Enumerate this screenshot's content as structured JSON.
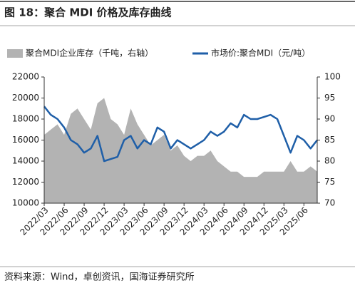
{
  "chart_data": {
    "type": "area-line",
    "title": "图 18：聚合 MDI 价格及库存曲线",
    "source": "资料来源：Wind，卓创资讯，国海证券研究所",
    "categories": [
      "2022/03",
      null,
      null,
      "2022/06",
      null,
      null,
      "2022/09",
      null,
      null,
      "2022/12",
      null,
      null,
      "2023/03",
      null,
      null,
      "2023/06",
      null,
      null,
      "2023/09",
      null,
      null,
      "2023/12",
      null,
      null,
      "2024/03",
      null,
      null,
      "2024/06",
      null,
      null,
      "2024/09",
      null,
      null,
      "2024/12",
      null,
      null,
      "2025/03",
      null,
      null,
      "2025/06",
      null,
      null
    ],
    "series": [
      {
        "name": "聚合MDI企业库存（千吨，右轴）",
        "kind": "area",
        "color": "#b3b3b3",
        "values": [
          16500,
          17000,
          17500,
          16500,
          18500,
          19000,
          18000,
          17000,
          19500,
          20000,
          18000,
          17500,
          16500,
          19000,
          17500,
          16500,
          15500,
          16000,
          16500,
          15000,
          15500,
          14500,
          14000,
          14500,
          14500,
          15000,
          14000,
          13500,
          13000,
          13000,
          12500,
          12500,
          12500,
          13000,
          13000,
          13000,
          13000,
          14000,
          13000,
          13000,
          13500,
          13000
        ]
      },
      {
        "name": "市场价:聚合MDI（元/吨）",
        "kind": "line",
        "axis": "y2",
        "color": "#1f5fa8",
        "values": [
          93,
          91,
          90,
          88,
          85,
          84,
          82,
          83,
          86,
          80,
          80.5,
          81,
          85,
          86,
          83,
          85,
          84,
          88,
          87,
          83,
          85,
          84,
          83,
          84,
          85,
          87,
          86,
          87,
          89,
          88,
          91,
          90,
          90,
          90.5,
          91,
          90,
          86,
          82,
          86,
          85,
          83,
          85
        ]
      }
    ],
    "ylim": [
      10000,
      22000
    ],
    "yticks": [
      10000,
      12000,
      14000,
      16000,
      18000,
      20000,
      22000
    ],
    "y2lim": [
      70,
      100
    ],
    "y2ticks": [
      70,
      75,
      80,
      85,
      90,
      95,
      100
    ]
  }
}
